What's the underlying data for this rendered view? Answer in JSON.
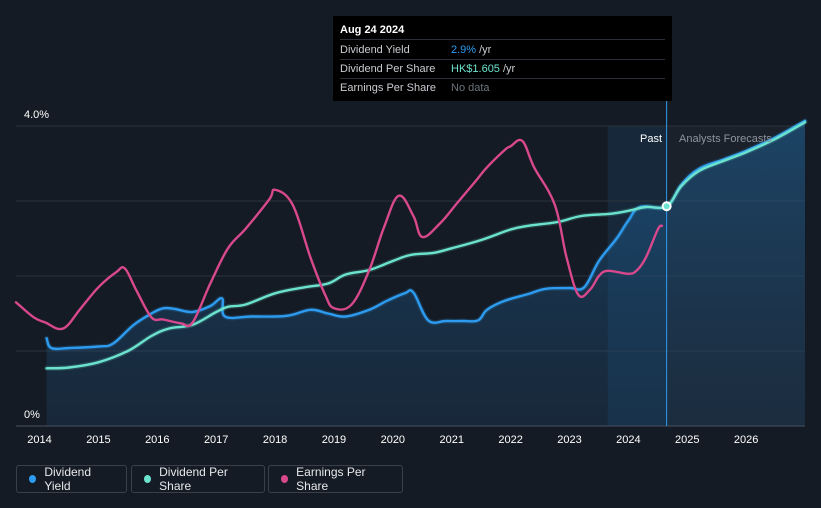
{
  "tooltip": {
    "date": "Aug 24 2024",
    "rows": [
      {
        "label": "Dividend Yield",
        "value": "2.9%",
        "unit": "/yr"
      },
      {
        "label": "Dividend Per Share",
        "value": "HK$1.605",
        "unit": "/yr"
      },
      {
        "label": "Earnings Per Share",
        "value": "No data",
        "unit": ""
      }
    ]
  },
  "legend": [
    {
      "label": "Dividend Yield",
      "color": "#2d9cf0"
    },
    {
      "label": "Dividend Per Share",
      "color": "#6ce3cf"
    },
    {
      "label": "Earnings Per Share",
      "color": "#d8488c"
    }
  ],
  "chart_data": {
    "type": "line",
    "title": "",
    "x_range": [
      2013.6,
      2027.0
    ],
    "ylim": [
      0,
      4.0
    ],
    "y_tick_labels": [
      "4.0%",
      "0%"
    ],
    "x_ticks": [
      2014,
      2015,
      2016,
      2017,
      2018,
      2019,
      2020,
      2021,
      2022,
      2023,
      2024,
      2025,
      2026
    ],
    "past_label": "Past",
    "forecast_label": "Analysts Forecasts",
    "past_band": [
      2023.65,
      2024.65
    ],
    "forecast_start": 2024.65,
    "marker": {
      "x": 2024.65,
      "y": 2.93
    },
    "series": [
      {
        "name": "Dividend Yield",
        "color": "#2d9cf0",
        "area": true,
        "points": [
          [
            2014.12,
            1.17
          ],
          [
            2014.2,
            1.04
          ],
          [
            2014.5,
            1.04
          ],
          [
            2015.0,
            1.06
          ],
          [
            2015.25,
            1.1
          ],
          [
            2015.6,
            1.35
          ],
          [
            2015.9,
            1.5
          ],
          [
            2016.1,
            1.57
          ],
          [
            2016.3,
            1.56
          ],
          [
            2016.6,
            1.52
          ],
          [
            2016.9,
            1.6
          ],
          [
            2017.1,
            1.7
          ],
          [
            2017.15,
            1.46
          ],
          [
            2017.6,
            1.46
          ],
          [
            2018.2,
            1.47
          ],
          [
            2018.6,
            1.55
          ],
          [
            2018.9,
            1.5
          ],
          [
            2019.2,
            1.46
          ],
          [
            2019.6,
            1.55
          ],
          [
            2019.9,
            1.67
          ],
          [
            2020.2,
            1.77
          ],
          [
            2020.35,
            1.78
          ],
          [
            2020.6,
            1.41
          ],
          [
            2020.9,
            1.4
          ],
          [
            2021.2,
            1.4
          ],
          [
            2021.45,
            1.41
          ],
          [
            2021.6,
            1.55
          ],
          [
            2021.9,
            1.67
          ],
          [
            2022.3,
            1.76
          ],
          [
            2022.6,
            1.83
          ],
          [
            2023.0,
            1.84
          ],
          [
            2023.25,
            1.85
          ],
          [
            2023.5,
            2.2
          ],
          [
            2023.8,
            2.5
          ],
          [
            2024.0,
            2.74
          ],
          [
            2024.2,
            2.92
          ],
          [
            2024.65,
            2.93
          ],
          [
            2024.9,
            3.22
          ],
          [
            2025.2,
            3.43
          ],
          [
            2025.6,
            3.55
          ],
          [
            2026.0,
            3.67
          ],
          [
            2026.5,
            3.85
          ],
          [
            2027.0,
            4.07
          ]
        ]
      },
      {
        "name": "Dividend Per Share",
        "color": "#6ce3cf",
        "area": false,
        "points": [
          [
            2014.12,
            0.77
          ],
          [
            2014.5,
            0.78
          ],
          [
            2015.0,
            0.85
          ],
          [
            2015.5,
            1.0
          ],
          [
            2015.9,
            1.2
          ],
          [
            2016.2,
            1.3
          ],
          [
            2016.6,
            1.35
          ],
          [
            2017.0,
            1.52
          ],
          [
            2017.2,
            1.59
          ],
          [
            2017.5,
            1.62
          ],
          [
            2018.0,
            1.77
          ],
          [
            2018.5,
            1.85
          ],
          [
            2018.9,
            1.9
          ],
          [
            2019.2,
            2.02
          ],
          [
            2019.6,
            2.08
          ],
          [
            2020.0,
            2.2
          ],
          [
            2020.3,
            2.28
          ],
          [
            2020.7,
            2.31
          ],
          [
            2021.0,
            2.37
          ],
          [
            2021.5,
            2.48
          ],
          [
            2022.0,
            2.62
          ],
          [
            2022.3,
            2.67
          ],
          [
            2022.8,
            2.72
          ],
          [
            2023.2,
            2.8
          ],
          [
            2023.7,
            2.83
          ],
          [
            2024.0,
            2.87
          ],
          [
            2024.3,
            2.92
          ],
          [
            2024.65,
            2.93
          ],
          [
            2024.9,
            3.2
          ],
          [
            2025.2,
            3.4
          ],
          [
            2025.6,
            3.53
          ],
          [
            2026.0,
            3.65
          ],
          [
            2026.5,
            3.83
          ],
          [
            2027.0,
            4.05
          ]
        ]
      },
      {
        "name": "Earnings Per Share",
        "color": "#d8488c",
        "area": false,
        "points": [
          [
            2013.6,
            1.65
          ],
          [
            2013.9,
            1.45
          ],
          [
            2014.1,
            1.38
          ],
          [
            2014.4,
            1.3
          ],
          [
            2014.7,
            1.57
          ],
          [
            2015.0,
            1.85
          ],
          [
            2015.3,
            2.05
          ],
          [
            2015.45,
            2.1
          ],
          [
            2015.65,
            1.8
          ],
          [
            2015.9,
            1.45
          ],
          [
            2016.1,
            1.42
          ],
          [
            2016.4,
            1.37
          ],
          [
            2016.6,
            1.38
          ],
          [
            2016.9,
            1.9
          ],
          [
            2017.2,
            2.37
          ],
          [
            2017.5,
            2.63
          ],
          [
            2017.9,
            3.02
          ],
          [
            2018.0,
            3.15
          ],
          [
            2018.3,
            2.95
          ],
          [
            2018.6,
            2.25
          ],
          [
            2018.85,
            1.75
          ],
          [
            2019.0,
            1.57
          ],
          [
            2019.3,
            1.62
          ],
          [
            2019.6,
            2.08
          ],
          [
            2019.85,
            2.65
          ],
          [
            2020.1,
            3.07
          ],
          [
            2020.35,
            2.8
          ],
          [
            2020.5,
            2.52
          ],
          [
            2020.8,
            2.7
          ],
          [
            2021.1,
            2.98
          ],
          [
            2021.4,
            3.26
          ],
          [
            2021.6,
            3.45
          ],
          [
            2021.9,
            3.68
          ],
          [
            2022.0,
            3.73
          ],
          [
            2022.2,
            3.8
          ],
          [
            2022.4,
            3.45
          ],
          [
            2022.75,
            2.95
          ],
          [
            2022.95,
            2.25
          ],
          [
            2023.15,
            1.75
          ],
          [
            2023.35,
            1.82
          ],
          [
            2023.5,
            2.0
          ],
          [
            2023.65,
            2.07
          ],
          [
            2024.0,
            2.03
          ],
          [
            2024.15,
            2.08
          ],
          [
            2024.3,
            2.25
          ],
          [
            2024.5,
            2.62
          ],
          [
            2024.57,
            2.67
          ]
        ]
      }
    ]
  }
}
